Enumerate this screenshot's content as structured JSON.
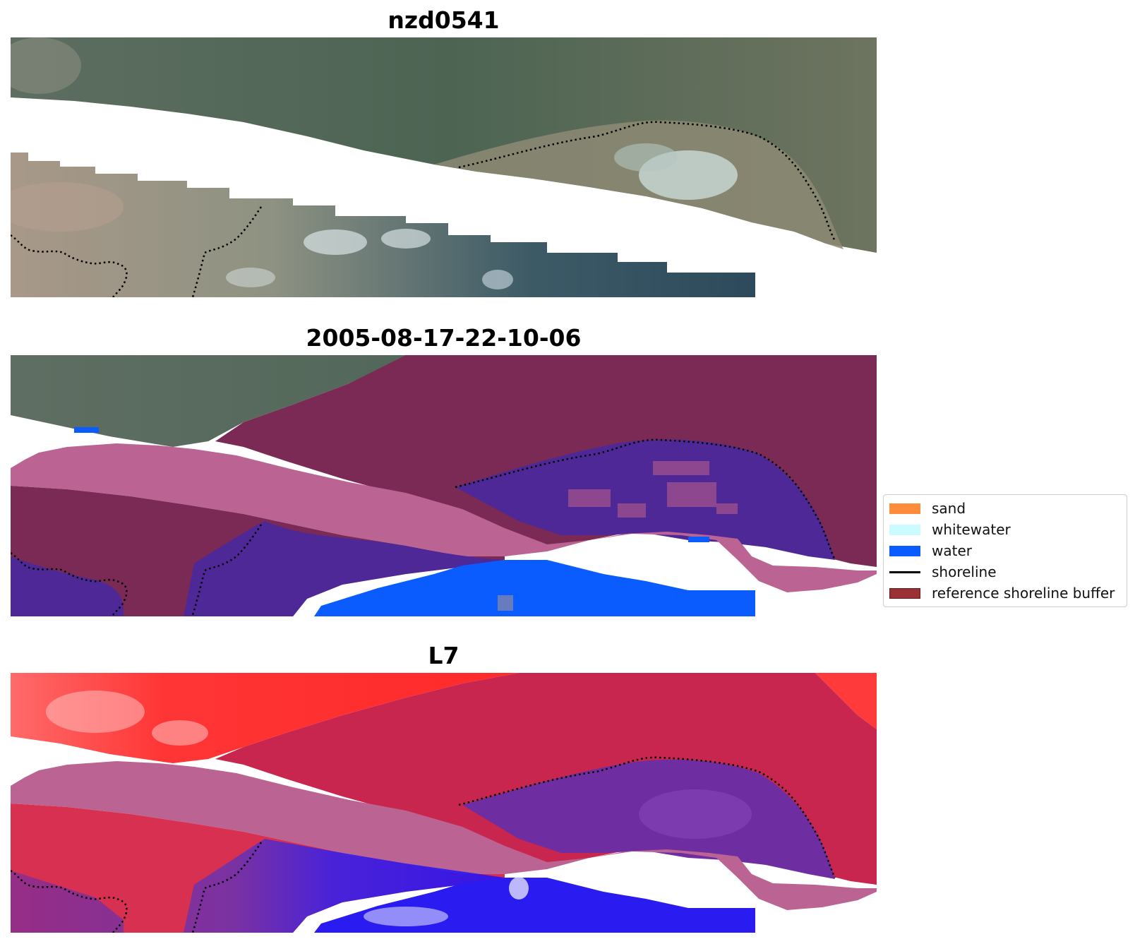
{
  "panels": [
    {
      "title": "nzd0541"
    },
    {
      "title": "2005-08-17-22-10-06"
    },
    {
      "title": "L7"
    }
  ],
  "legend": {
    "items": [
      {
        "label": "sand",
        "color": "#ff8c3a",
        "kind": "patch"
      },
      {
        "label": "whitewater",
        "color": "#ccfbff",
        "kind": "patch"
      },
      {
        "label": "water",
        "color": "#0a5cff",
        "kind": "patch"
      },
      {
        "label": "shoreline",
        "color": "#000000",
        "kind": "line"
      },
      {
        "label": "reference shoreline buffer",
        "color": "#9b3035",
        "kind": "patch"
      }
    ]
  },
  "colors": {
    "rgb_land_dark": "#4f6654",
    "rgb_land_light": "#8b8f7a",
    "rgb_sand_bank": "#9a8a7c",
    "rgb_water_dark": "#2f4d5e",
    "rgb_surf": "#c8d6d8",
    "buffer_dark": "#7a2a55",
    "buffer_light": "#bb6494",
    "class_purple": "#4f2897",
    "class_water": "#0a5cff",
    "index_red": "#ff3b3b",
    "index_crimson": "#c8264e",
    "index_purple": "#6e2da0",
    "index_blue": "#2a1cf0"
  }
}
